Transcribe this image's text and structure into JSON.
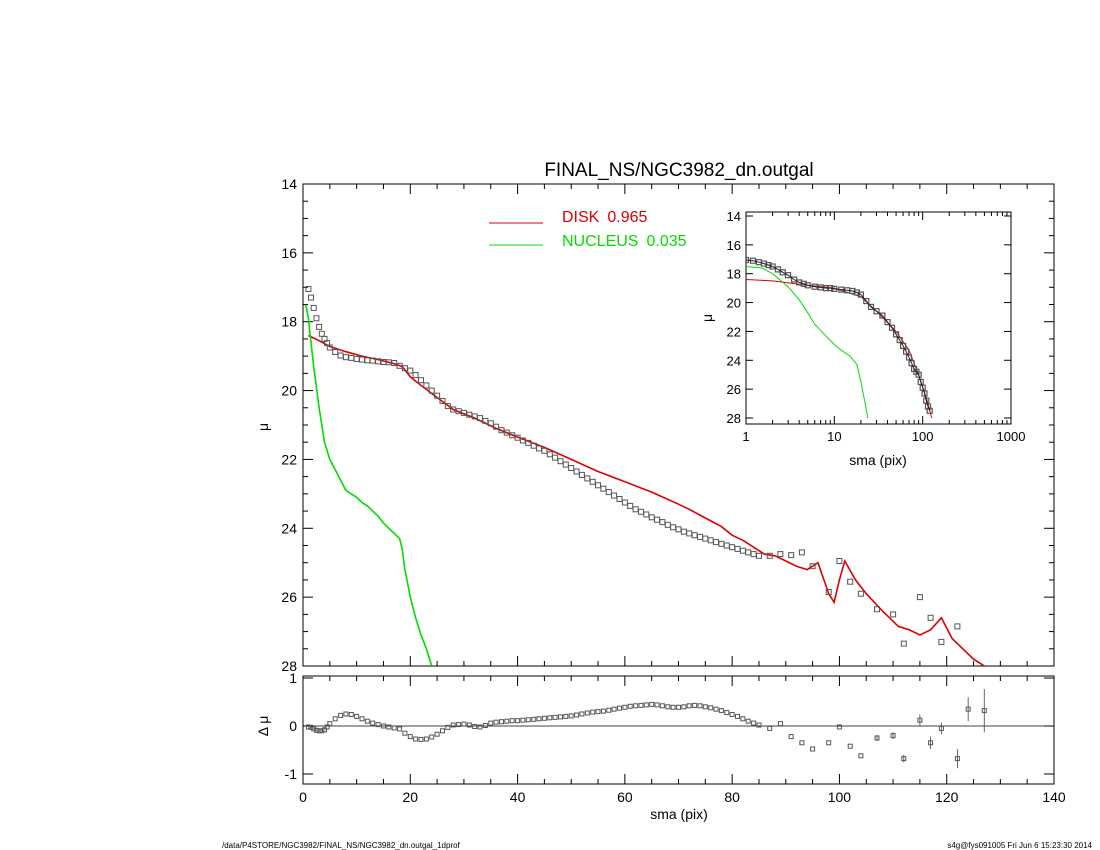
{
  "chart_data": [
    {
      "type": "line",
      "title": "FINAL_NS/NGC3982_dn.outgal",
      "xlabel": "",
      "ylabel": "μ",
      "xlim": [
        0,
        140
      ],
      "ylim": [
        28,
        14
      ],
      "inverted_y": true,
      "yticks": [
        "14",
        "16",
        "18",
        "20",
        "22",
        "24",
        "26",
        "28"
      ],
      "legend_placement": "top-center",
      "legend": [
        {
          "name": "DISK",
          "value": "0.965",
          "color": "#dd0000"
        },
        {
          "name": "NUCLEUS",
          "value": "0.035",
          "color": "#00dd00"
        }
      ],
      "series": [
        {
          "name": "DISK",
          "role": "model-line",
          "color": "#dd0000",
          "x": [
            1,
            3,
            5,
            8,
            11,
            14,
            17,
            18.5,
            20,
            22,
            25,
            28,
            32,
            36,
            40,
            45,
            50,
            55,
            60,
            65,
            70,
            72,
            75,
            78,
            80,
            82,
            84,
            86,
            88,
            90,
            92,
            94,
            96,
            98,
            99,
            100,
            101,
            103,
            105,
            108,
            111,
            113,
            115,
            117,
            119,
            121,
            123,
            125,
            127
          ],
          "y": [
            18.4,
            18.55,
            18.72,
            18.87,
            19.0,
            19.1,
            19.22,
            19.3,
            19.6,
            19.85,
            20.2,
            20.55,
            20.8,
            21.1,
            21.35,
            21.65,
            22.0,
            22.35,
            22.65,
            22.95,
            23.3,
            23.45,
            23.7,
            23.95,
            24.2,
            24.35,
            24.55,
            24.75,
            24.8,
            24.95,
            25.1,
            25.2,
            25.0,
            25.9,
            26.15,
            25.5,
            24.95,
            25.5,
            25.9,
            26.4,
            26.85,
            26.95,
            27.1,
            26.95,
            26.6,
            27.2,
            27.5,
            27.8,
            28.0
          ]
        },
        {
          "name": "NUCLEUS",
          "role": "model-line",
          "color": "#00dd00",
          "x": [
            0.5,
            1,
            1.5,
            2,
            3,
            4,
            5,
            6,
            7,
            8,
            9,
            10,
            11,
            12,
            13,
            14,
            15,
            16,
            17,
            18,
            18.5,
            19,
            20,
            21,
            22,
            23,
            24
          ],
          "y": [
            17.5,
            17.9,
            18.6,
            19.3,
            20.5,
            21.5,
            22.0,
            22.3,
            22.6,
            22.9,
            23.0,
            23.1,
            23.25,
            23.35,
            23.5,
            23.65,
            23.85,
            24.0,
            24.15,
            24.3,
            24.6,
            25.2,
            26.0,
            26.6,
            27.1,
            27.5,
            28.0
          ]
        },
        {
          "name": "data",
          "role": "markers",
          "color": "#555555",
          "x": [
            1,
            1.5,
            2,
            2.5,
            3,
            3.5,
            4,
            4.5,
            5,
            6,
            7,
            8,
            9,
            10,
            11,
            12,
            13,
            14,
            15,
            16,
            17,
            18,
            19,
            20,
            21,
            22,
            23,
            24,
            25,
            26,
            27,
            28,
            29,
            30,
            31,
            32,
            33,
            34,
            35,
            36,
            37,
            38,
            39,
            40,
            41,
            42,
            43,
            44,
            45,
            46,
            47,
            48,
            49,
            50,
            51,
            52,
            53,
            54,
            55,
            56,
            57,
            58,
            59,
            60,
            61,
            62,
            63,
            64,
            65,
            66,
            67,
            68,
            69,
            70,
            71,
            72,
            73,
            74,
            75,
            76,
            77,
            78,
            79,
            80,
            81,
            82,
            83,
            84,
            85,
            87,
            89,
            91,
            93,
            95,
            98,
            100,
            102,
            104,
            107,
            110,
            112,
            115,
            117,
            119,
            122
          ],
          "y": [
            17.05,
            17.3,
            17.6,
            17.9,
            18.15,
            18.35,
            18.5,
            18.62,
            18.75,
            18.88,
            18.98,
            19.03,
            19.05,
            19.08,
            19.1,
            19.12,
            19.13,
            19.15,
            19.17,
            19.18,
            19.2,
            19.28,
            19.35,
            19.42,
            19.55,
            19.7,
            19.85,
            20.0,
            20.15,
            20.3,
            20.45,
            20.55,
            20.6,
            20.65,
            20.7,
            20.75,
            20.8,
            20.88,
            20.95,
            21.05,
            21.15,
            21.22,
            21.3,
            21.37,
            21.45,
            21.52,
            21.6,
            21.68,
            21.75,
            21.85,
            21.95,
            22.05,
            22.15,
            22.25,
            22.35,
            22.45,
            22.55,
            22.65,
            22.75,
            22.85,
            22.95,
            23.05,
            23.15,
            23.25,
            23.35,
            23.45,
            23.52,
            23.6,
            23.68,
            23.75,
            23.82,
            23.9,
            23.97,
            24.03,
            24.1,
            24.15,
            24.2,
            24.25,
            24.3,
            24.35,
            24.4,
            24.45,
            24.5,
            24.55,
            24.6,
            24.65,
            24.7,
            24.75,
            24.8,
            24.8,
            24.75,
            24.78,
            24.7,
            25.1,
            25.85,
            24.95,
            25.55,
            25.9,
            26.35,
            26.5,
            27.35,
            26.0,
            26.6,
            27.3,
            26.85
          ]
        }
      ]
    },
    {
      "type": "scatter",
      "title": "",
      "xlabel": "sma (pix)",
      "ylabel": "Δ μ",
      "xlim": [
        0,
        140
      ],
      "ylim": [
        -1,
        1
      ],
      "xticks": [
        "0",
        "20",
        "40",
        "60",
        "80",
        "100",
        "120",
        "140"
      ],
      "yticks": [
        "1",
        "0",
        "-1"
      ],
      "zero_line": true,
      "series": [
        {
          "name": "residuals",
          "role": "markers",
          "color": "#555555",
          "x": [
            1,
            1.5,
            2,
            2.5,
            3,
            3.5,
            4,
            4.5,
            5,
            6,
            7,
            8,
            9,
            10,
            11,
            12,
            13,
            14,
            15,
            16,
            17,
            18,
            19,
            20,
            21,
            22,
            23,
            24,
            25,
            26,
            27,
            28,
            29,
            30,
            31,
            32,
            33,
            34,
            35,
            36,
            37,
            38,
            39,
            40,
            41,
            42,
            43,
            44,
            45,
            46,
            47,
            48,
            49,
            50,
            51,
            52,
            53,
            54,
            55,
            56,
            57,
            58,
            59,
            60,
            61,
            62,
            63,
            64,
            65,
            66,
            67,
            68,
            69,
            70,
            71,
            72,
            73,
            74,
            75,
            76,
            77,
            78,
            79,
            80,
            81,
            82,
            83,
            84,
            85,
            87,
            89,
            91,
            93,
            95,
            98,
            100,
            102,
            104,
            107,
            110,
            112,
            115,
            117,
            119,
            122,
            124,
            127
          ],
          "y": [
            -0.02,
            -0.03,
            -0.06,
            -0.09,
            -0.1,
            -0.1,
            -0.08,
            -0.02,
            0.05,
            0.15,
            0.22,
            0.25,
            0.24,
            0.2,
            0.15,
            0.1,
            0.06,
            0.03,
            0.0,
            -0.02,
            -0.04,
            -0.06,
            -0.15,
            -0.22,
            -0.27,
            -0.28,
            -0.27,
            -0.23,
            -0.17,
            -0.1,
            -0.03,
            0.02,
            0.03,
            0.04,
            0.02,
            -0.01,
            -0.02,
            0.01,
            0.06,
            0.08,
            0.09,
            0.1,
            0.11,
            0.11,
            0.12,
            0.13,
            0.14,
            0.15,
            0.16,
            0.17,
            0.18,
            0.19,
            0.2,
            0.21,
            0.23,
            0.25,
            0.27,
            0.29,
            0.3,
            0.31,
            0.33,
            0.35,
            0.37,
            0.39,
            0.41,
            0.42,
            0.43,
            0.44,
            0.45,
            0.44,
            0.42,
            0.4,
            0.39,
            0.39,
            0.4,
            0.42,
            0.43,
            0.42,
            0.4,
            0.38,
            0.35,
            0.32,
            0.28,
            0.24,
            0.2,
            0.15,
            0.1,
            0.06,
            0.02,
            -0.05,
            0.05,
            -0.22,
            -0.35,
            -0.48,
            -0.35,
            -0.02,
            -0.42,
            -0.62,
            -0.25,
            -0.2,
            -0.68,
            0.12,
            -0.35,
            -0.05,
            -0.68,
            0.35,
            0.32
          ],
          "err": [
            0,
            0,
            0,
            0,
            0,
            0,
            0,
            0,
            0,
            0,
            0,
            0,
            0,
            0,
            0,
            0,
            0,
            0,
            0,
            0,
            0,
            0,
            0,
            0,
            0,
            0,
            0,
            0,
            0,
            0,
            0,
            0,
            0,
            0,
            0,
            0,
            0,
            0,
            0,
            0,
            0,
            0,
            0,
            0,
            0,
            0,
            0,
            0,
            0,
            0,
            0,
            0,
            0,
            0,
            0,
            0,
            0,
            0,
            0,
            0,
            0,
            0,
            0,
            0,
            0,
            0,
            0,
            0,
            0,
            0,
            0,
            0,
            0,
            0,
            0,
            0,
            0,
            0,
            0,
            0,
            0,
            0,
            0,
            0,
            0,
            0,
            0,
            0,
            0,
            0,
            0,
            0,
            0,
            0,
            0,
            0,
            0,
            0,
            0.06,
            0.07,
            0.08,
            0.12,
            0.13,
            0.12,
            0.2,
            0.25,
            0.45
          ]
        }
      ]
    },
    {
      "type": "line",
      "title": "",
      "xlabel": "sma (pix)",
      "ylabel": "μ",
      "xscale": "log",
      "xlim": [
        1,
        1000
      ],
      "ylim": [
        28,
        14
      ],
      "inverted_y": true,
      "xticks": [
        "1",
        "10",
        "100",
        "1000"
      ],
      "yticks": [
        "14",
        "16",
        "18",
        "20",
        "22",
        "24",
        "26",
        "28"
      ],
      "series": [
        {
          "name": "DISK",
          "role": "model-line",
          "color": "#dd0000",
          "x": [
            1,
            2,
            5,
            10,
            20,
            30,
            50,
            70,
            90,
            110,
            127
          ],
          "y": [
            18.4,
            18.5,
            18.8,
            19.0,
            19.6,
            20.6,
            22.0,
            23.3,
            25.0,
            26.6,
            28.0
          ]
        },
        {
          "name": "NUCLEUS",
          "role": "model-line",
          "color": "#00dd00",
          "x": [
            1,
            1.5,
            2,
            3,
            4,
            5,
            6,
            8,
            10,
            12,
            15,
            18,
            20,
            22,
            24
          ],
          "y": [
            17.5,
            17.6,
            18.0,
            18.9,
            19.8,
            20.7,
            21.5,
            22.3,
            22.9,
            23.3,
            23.7,
            24.3,
            25.5,
            26.8,
            28.0
          ]
        },
        {
          "name": "data",
          "role": "markers",
          "color": "#555555",
          "x": [
            1,
            1.2,
            1.4,
            1.6,
            1.8,
            2,
            2.3,
            2.6,
            3,
            3.5,
            4,
            4.5,
            5,
            6,
            7,
            8,
            9,
            10,
            12,
            14,
            16,
            18,
            20,
            23,
            26,
            30,
            35,
            40,
            45,
            50,
            55,
            60,
            65,
            70,
            75,
            80,
            85,
            90,
            95,
            100,
            105,
            110,
            115,
            120
          ],
          "y": [
            17.05,
            17.1,
            17.2,
            17.3,
            17.4,
            17.5,
            17.7,
            17.9,
            18.1,
            18.4,
            18.6,
            18.7,
            18.8,
            18.9,
            18.95,
            19.0,
            19.0,
            19.05,
            19.1,
            19.15,
            19.2,
            19.3,
            19.45,
            19.9,
            20.3,
            20.6,
            20.9,
            21.35,
            21.75,
            22.2,
            22.6,
            23.0,
            23.4,
            23.8,
            24.2,
            24.6,
            24.8,
            25.0,
            25.5,
            25.9,
            26.3,
            26.8,
            27.2,
            27.5
          ]
        }
      ]
    }
  ],
  "footer": {
    "left": "/data/P4STORE/NGC3982/FINAL_NS/NGC3982_dn.outgal_1dprof",
    "right": "s4g@fys091005  Fri Jun  6 15:23:30 2014"
  }
}
